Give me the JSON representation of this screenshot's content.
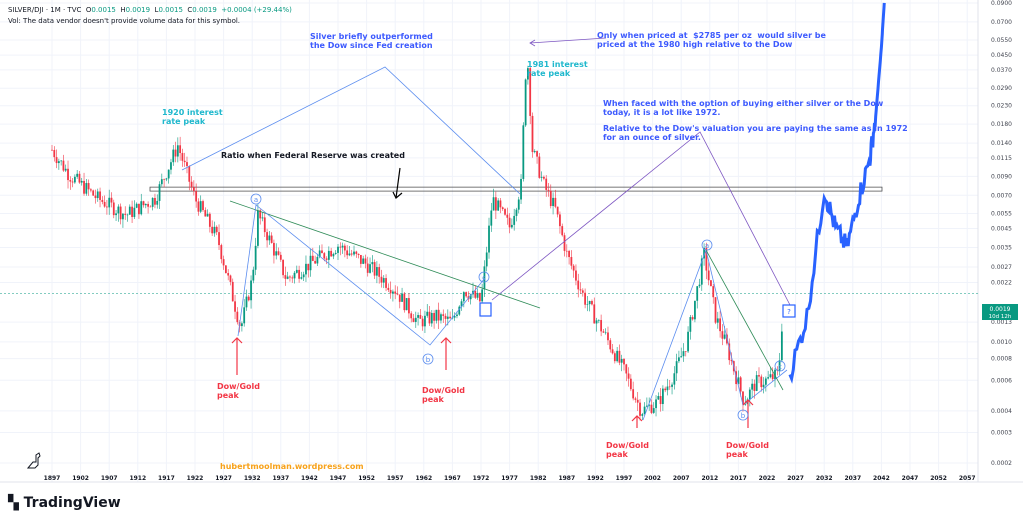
{
  "header": {
    "symbol": "SILVER/DJI · 1M · TVC",
    "o_label": "O",
    "o": "0.0015",
    "h_label": "H",
    "h": "0.0019",
    "l_label": "L",
    "l": "0.0015",
    "c_label": "C",
    "c": "0.0019",
    "change": "+0.0004 (+29.44%)",
    "vol_note": "Vol: The data vendor doesn't provide volume data for this symbol."
  },
  "annotations": {
    "fed_outperform": "Silver briefly outperformed\nthe Dow since Fed creation",
    "only_when": "Only when priced at  $2785 per oz  would silver be\npriced at the 1980 high relative to the Dow",
    "peak1981": "1981 interest\nrate peak",
    "peak1920": "1920 interest\nrate peak",
    "fed_ratio": "Ratio when Federal Reserve was created",
    "faced": "When faced with the option of buying either silver or the Dow\ntoday, it is a lot like 1972.",
    "relative": "Relative to the Dow's valuation you are paying the same as in 1972\nfor an ounce of silver.",
    "dowgold": "Dow/Gold\npeak",
    "wave_a": "a",
    "wave_b": "b",
    "wave_c": "c",
    "question": "?",
    "watermark": "hubertmoolman.wordpress.com"
  },
  "price_label": {
    "value": "0.0019",
    "countdown": "10d 12h",
    "color": "#089981"
  },
  "brand": "TradingView",
  "colors": {
    "up": "#089981",
    "down": "#f23645",
    "projection": "#2962ff",
    "annotation_blue": "#3d5afe",
    "annotation_cyan": "#1fb8cd",
    "annotation_red": "#f23645"
  },
  "chart_data": {
    "type": "candlestick",
    "title": "",
    "y_scale": "log",
    "ylim": [
      0.00018,
      0.095
    ],
    "xlim": [
      1892,
      2062
    ],
    "grid": true,
    "x_ticks": [
      "1897",
      "1902",
      "1907",
      "1912",
      "1917",
      "1922",
      "1927",
      "1932",
      "1937",
      "1942",
      "1947",
      "1952",
      "1957",
      "1962",
      "1967",
      "1972",
      "1977",
      "1982",
      "1987",
      "1992",
      "1997",
      "2002",
      "2007",
      "2012",
      "2017",
      "2022",
      "2027",
      "2032",
      "2037",
      "2042",
      "2047",
      "2052",
      "2057"
    ],
    "y_ticks": [
      "0.0900",
      "0.0700",
      "0.0550",
      "0.0450",
      "0.0370",
      "0.0290",
      "0.0230",
      "0.0180",
      "0.0140",
      "0.0115",
      "0.0090",
      "0.0070",
      "0.0055",
      "0.0045",
      "0.0035",
      "0.0027",
      "0.0022",
      "0.0013",
      "0.0010",
      "0.0008",
      "0.0006",
      "0.0004",
      "0.0003",
      "0.0002"
    ],
    "series": [
      {
        "kind": "price",
        "points": [
          [
            1897,
            0.0128
          ],
          [
            1900,
            0.0092
          ],
          [
            1905,
            0.0067
          ],
          [
            1910,
            0.0054
          ],
          [
            1915,
            0.0067
          ],
          [
            1919,
            0.0136
          ],
          [
            1922,
            0.0067
          ],
          [
            1926,
            0.0039
          ],
          [
            1930,
            0.0012
          ],
          [
            1932,
            0.0023
          ],
          [
            1933,
            0.0054
          ],
          [
            1935,
            0.0039
          ],
          [
            1938,
            0.0023
          ],
          [
            1942,
            0.0028
          ],
          [
            1947,
            0.0036
          ],
          [
            1952,
            0.0028
          ],
          [
            1957,
            0.002
          ],
          [
            1961,
            0.0013
          ],
          [
            1964,
            0.0014
          ],
          [
            1967,
            0.0013
          ],
          [
            1969,
            0.002
          ],
          [
            1972,
            0.0017
          ],
          [
            1974,
            0.0067
          ],
          [
            1977,
            0.0046
          ],
          [
            1979,
            0.008
          ],
          [
            1980,
            0.051
          ],
          [
            1981,
            0.0128
          ],
          [
            1983,
            0.008
          ],
          [
            1985,
            0.0058
          ],
          [
            1987,
            0.0032
          ],
          [
            1990,
            0.0018
          ],
          [
            1993,
            0.0012
          ],
          [
            1997,
            0.00068
          ],
          [
            2000,
            0.0004
          ],
          [
            2003,
            0.00045
          ],
          [
            2006,
            0.00068
          ],
          [
            2008,
            0.001
          ],
          [
            2011,
            0.0032
          ],
          [
            2013,
            0.0014
          ],
          [
            2015,
            0.00093
          ],
          [
            2018,
            0.00045
          ],
          [
            2020,
            0.00058
          ],
          [
            2022,
            0.0006
          ],
          [
            2024,
            0.00065
          ],
          [
            2025,
            0.0019
          ]
        ]
      },
      {
        "kind": "projection",
        "points": [
          [
            2026,
            0.00065
          ],
          [
            2029,
            0.0014
          ],
          [
            2032,
            0.0075
          ],
          [
            2034,
            0.0045
          ],
          [
            2036,
            0.0035
          ],
          [
            2038,
            0.0067
          ],
          [
            2040,
            0.0115
          ],
          [
            2041,
            0.02
          ],
          [
            2042,
            0.05
          ],
          [
            2042.5,
            0.09
          ]
        ]
      }
    ],
    "reference_level": 0.0019,
    "fed_ratio_band": [
      0.0074,
      0.0078
    ]
  }
}
